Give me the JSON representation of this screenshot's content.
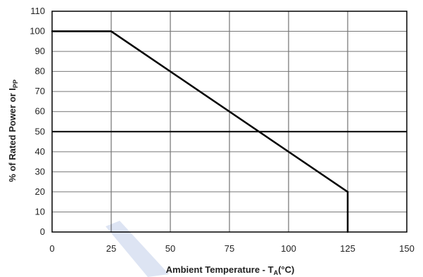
{
  "chart_data": {
    "type": "line",
    "xlabel": {
      "text": "Ambient Temperature - T",
      "sub": "A",
      "suffix": "(°C)"
    },
    "ylabel": {
      "text": "% of Rated Power or I",
      "sub": "PP"
    },
    "xlim": [
      0,
      150
    ],
    "ylim": [
      0,
      110
    ],
    "x_ticks": [
      0,
      25,
      50,
      75,
      100,
      125,
      150
    ],
    "y_ticks": [
      0,
      10,
      20,
      30,
      40,
      50,
      60,
      70,
      80,
      90,
      100,
      110
    ],
    "grid": true,
    "reference_line_y": 50,
    "series": [
      {
        "x": [
          0,
          25,
          125,
          125
        ],
        "y": [
          100,
          100,
          20,
          0
        ]
      }
    ]
  }
}
